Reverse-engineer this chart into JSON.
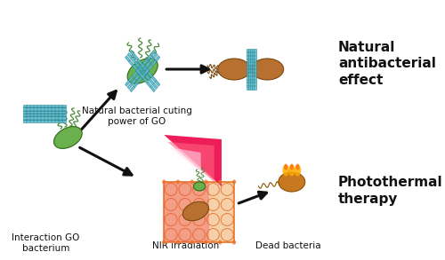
{
  "background_color": "#ffffff",
  "labels": {
    "interaction_go": "Interaction GO\nbacterium",
    "natural_cuting": "Natural bacterial cuting\npower of GO",
    "nir": "NIR irradiation",
    "dead_bacteria": "Dead bacteria",
    "natural_effect": "Natural\nantibacterial\neffect",
    "photothermal": "Photothermal\ntherapy"
  },
  "colors": {
    "go_sheet": "#5bbccc",
    "go_sheet_dark": "#2a8a9a",
    "bacteria_green": "#6ab04c",
    "bacteria_green_dark": "#2d6a1b",
    "bacteria_brown": "#b87030",
    "bacteria_brown_dark": "#7a4810",
    "bacteria_dead": "#c87820",
    "nir_red": "#ee1050",
    "nir_pink": "#ff6080",
    "nir_light": "#ffb0c0",
    "cell_orange": "#e8742a",
    "cell_fill": "#f5d0a9",
    "cell_overlay": "#ee4444",
    "arrow_color": "#111111",
    "text_color": "#111111",
    "flagella_green": "#4a8a3a",
    "flagella_brown": "#7a4810"
  }
}
